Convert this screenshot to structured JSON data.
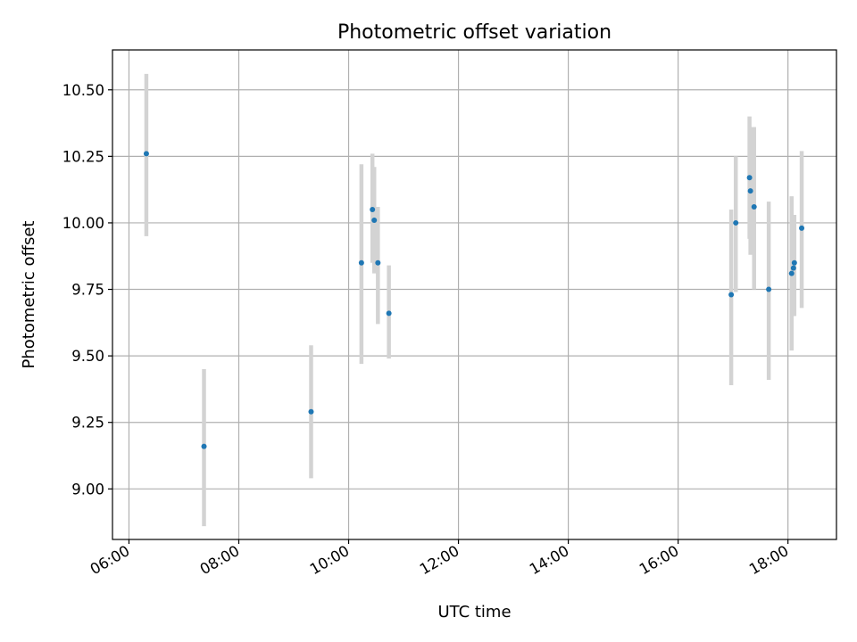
{
  "chart_data": {
    "type": "scatter",
    "title": "Photometric offset variation",
    "xlabel": "UTC time",
    "ylabel": "Photometric offset",
    "xlim": [
      "05:42",
      "18:53"
    ],
    "ylim": [
      8.81,
      10.65
    ],
    "xticks": [
      "06:00",
      "08:00",
      "10:00",
      "12:00",
      "14:00",
      "16:00",
      "18:00"
    ],
    "yticks": [
      "9.00",
      "9.25",
      "9.50",
      "9.75",
      "10.00",
      "10.25",
      "10.50"
    ],
    "grid": true,
    "legend": "none",
    "colors": {
      "marker": "#1f77b4",
      "errorbar": "#d3d3d3",
      "grid": "#b0b0b0",
      "axes": "#000000"
    },
    "points": [
      {
        "x": "06:19",
        "y": 10.26,
        "lo": 9.95,
        "hi": 10.56
      },
      {
        "x": "07:22",
        "y": 9.16,
        "lo": 8.86,
        "hi": 9.45
      },
      {
        "x": "09:19",
        "y": 9.29,
        "lo": 9.04,
        "hi": 9.54
      },
      {
        "x": "10:14",
        "y": 9.85,
        "lo": 9.47,
        "hi": 10.22
      },
      {
        "x": "10:26",
        "y": 10.05,
        "lo": 9.85,
        "hi": 10.26
      },
      {
        "x": "10:28",
        "y": 10.01,
        "lo": 9.81,
        "hi": 10.21
      },
      {
        "x": "10:32",
        "y": 9.85,
        "lo": 9.62,
        "hi": 10.06
      },
      {
        "x": "10:44",
        "y": 9.66,
        "lo": 9.49,
        "hi": 9.84
      },
      {
        "x": "16:58",
        "y": 9.73,
        "lo": 9.39,
        "hi": 10.05
      },
      {
        "x": "17:03",
        "y": 10.0,
        "lo": 9.74,
        "hi": 10.25
      },
      {
        "x": "17:18",
        "y": 10.17,
        "lo": 9.94,
        "hi": 10.4
      },
      {
        "x": "17:19",
        "y": 10.12,
        "lo": 9.88,
        "hi": 10.36
      },
      {
        "x": "17:23",
        "y": 10.06,
        "lo": 9.75,
        "hi": 10.36
      },
      {
        "x": "17:39",
        "y": 9.75,
        "lo": 9.41,
        "hi": 10.08
      },
      {
        "x": "18:04",
        "y": 9.81,
        "lo": 9.52,
        "hi": 10.1
      },
      {
        "x": "18:06",
        "y": 9.83,
        "lo": 9.65,
        "hi": 10.03
      },
      {
        "x": "18:07",
        "y": 9.85,
        "lo": 9.65,
        "hi": 10.03
      },
      {
        "x": "18:15",
        "y": 9.98,
        "lo": 9.68,
        "hi": 10.27
      }
    ]
  }
}
